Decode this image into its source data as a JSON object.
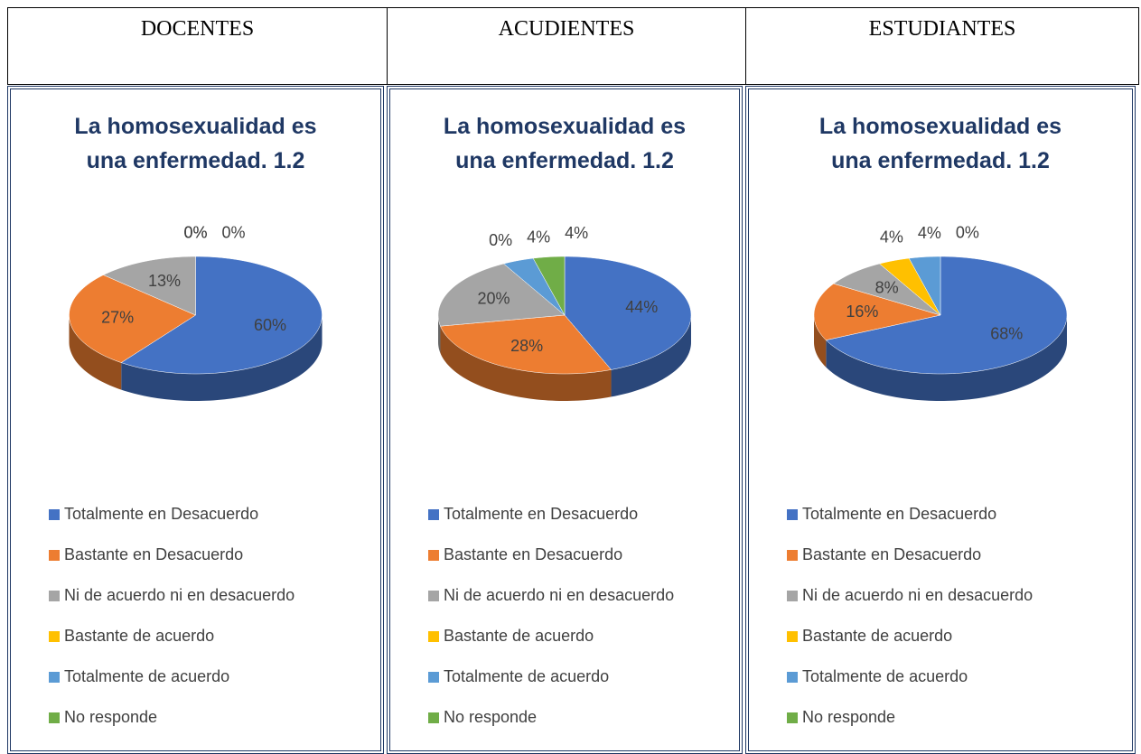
{
  "table": {
    "headers": [
      "DOCENTES",
      "ACUDIENTES",
      "ESTUDIANTES"
    ]
  },
  "chart_data": [
    {
      "type": "pie",
      "title": "La homosexualidad es una enfermedad. 1.2",
      "categories": [
        "Totalmente en Desacuerdo",
        "Bastante en Desacuerdo",
        "Ni de acuerdo ni en desacuerdo",
        "Bastante de acuerdo",
        "Totalmente de acuerdo",
        "No responde"
      ],
      "values": [
        60,
        27,
        13,
        0,
        0,
        0
      ],
      "value_labels": [
        "60%",
        "27%",
        "13%",
        "0%",
        "0%",
        "0%"
      ],
      "colors": [
        "#4472c4",
        "#ed7d31",
        "#a5a5a5",
        "#ffc000",
        "#5b9bd5",
        "#70ad47"
      ]
    },
    {
      "type": "pie",
      "title": "La homosexualidad es una enfermedad. 1.2",
      "categories": [
        "Totalmente en Desacuerdo",
        "Bastante en Desacuerdo",
        "Ni de acuerdo ni en desacuerdo",
        "Bastante de acuerdo",
        "Totalmente de acuerdo",
        "No responde"
      ],
      "values": [
        44,
        28,
        20,
        0,
        4,
        4
      ],
      "value_labels": [
        "44%",
        "28%",
        "20%",
        "0%",
        "4%",
        "4%"
      ],
      "colors": [
        "#4472c4",
        "#ed7d31",
        "#a5a5a5",
        "#ffc000",
        "#5b9bd5",
        "#70ad47"
      ]
    },
    {
      "type": "pie",
      "title": "La homosexualidad es una enfermedad. 1.2",
      "categories": [
        "Totalmente en Desacuerdo",
        "Bastante en Desacuerdo",
        "Ni de acuerdo ni en desacuerdo",
        "Bastante de acuerdo",
        "Totalmente de acuerdo",
        "No responde"
      ],
      "values": [
        68,
        16,
        8,
        4,
        4,
        0
      ],
      "value_labels": [
        "68%",
        "16%",
        "8%",
        "4%",
        "4%",
        "0%"
      ],
      "colors": [
        "#4472c4",
        "#ed7d31",
        "#a5a5a5",
        "#ffc000",
        "#5b9bd5",
        "#70ad47"
      ]
    }
  ]
}
